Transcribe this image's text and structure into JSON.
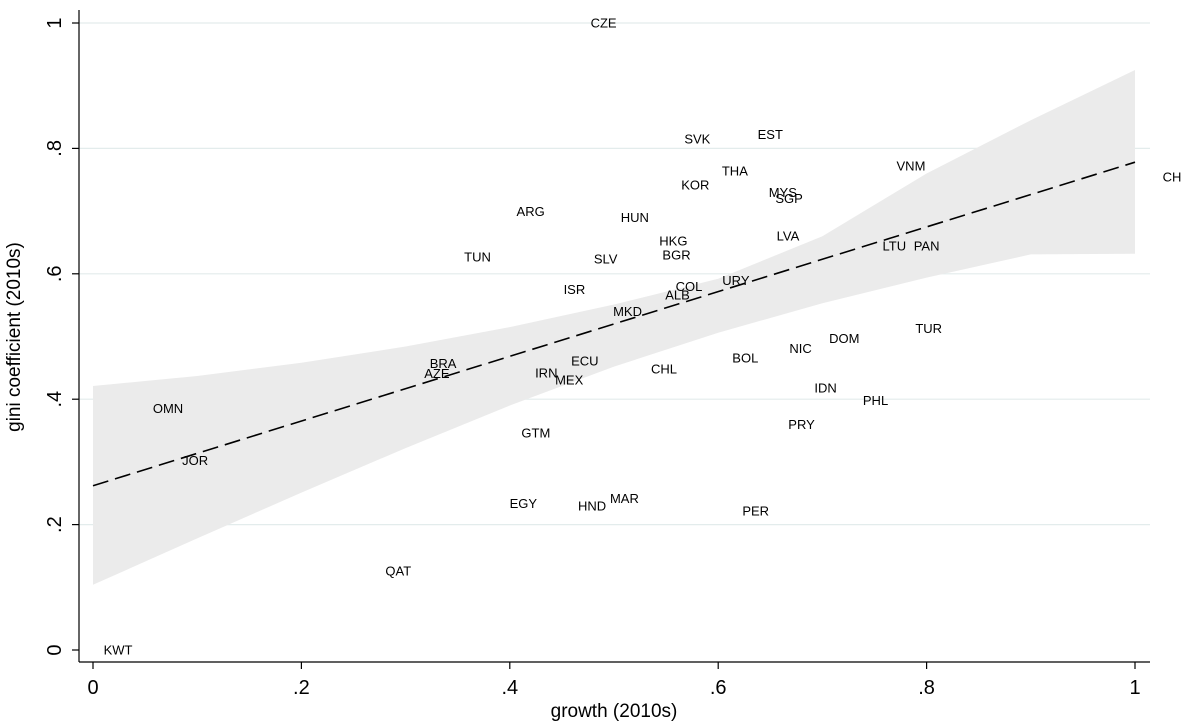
{
  "chart_data": {
    "type": "scatter",
    "xlabel": "growth (2010s)",
    "ylabel": "gini coefficient (2010s)",
    "xlim": [
      0,
      1
    ],
    "ylim": [
      0,
      1
    ],
    "xticks": [
      0,
      0.2,
      0.4,
      0.6,
      0.8,
      1
    ],
    "xtick_labels": [
      "0",
      ".2",
      ".4",
      ".6",
      ".8",
      "1"
    ],
    "yticks": [
      0,
      0.2,
      0.4,
      0.6,
      0.8,
      1
    ],
    "ytick_labels": [
      "0",
      ".2",
      ".4",
      ".6",
      ".8",
      "1"
    ],
    "grid": "horizontal",
    "marker": "country code labels",
    "points": [
      {
        "label": "CZE",
        "x": 0.49,
        "y": 1.0
      },
      {
        "label": "SVK",
        "x": 0.58,
        "y": 0.815
      },
      {
        "label": "EST",
        "x": 0.65,
        "y": 0.822
      },
      {
        "label": "VNM",
        "x": 0.785,
        "y": 0.772
      },
      {
        "label": "CHN",
        "x": 1.04,
        "y": 0.754
      },
      {
        "label": "THA",
        "x": 0.616,
        "y": 0.764
      },
      {
        "label": "KOR",
        "x": 0.578,
        "y": 0.742
      },
      {
        "label": "MYS",
        "x": 0.662,
        "y": 0.73
      },
      {
        "label": "SGP",
        "x": 0.668,
        "y": 0.72
      },
      {
        "label": "ARG",
        "x": 0.42,
        "y": 0.699
      },
      {
        "label": "HUN",
        "x": 0.52,
        "y": 0.69
      },
      {
        "label": "LVA",
        "x": 0.667,
        "y": 0.66
      },
      {
        "label": "HKG",
        "x": 0.557,
        "y": 0.652
      },
      {
        "label": "BGR",
        "x": 0.56,
        "y": 0.63
      },
      {
        "label": "LTU",
        "x": 0.769,
        "y": 0.644
      },
      {
        "label": "PAN",
        "x": 0.8,
        "y": 0.644
      },
      {
        "label": "TUN",
        "x": 0.369,
        "y": 0.627
      },
      {
        "label": "SLV",
        "x": 0.492,
        "y": 0.624
      },
      {
        "label": "URY",
        "x": 0.617,
        "y": 0.589
      },
      {
        "label": "COL",
        "x": 0.572,
        "y": 0.58
      },
      {
        "label": "ISR",
        "x": 0.462,
        "y": 0.575
      },
      {
        "label": "ALB",
        "x": 0.561,
        "y": 0.566
      },
      {
        "label": "MKD",
        "x": 0.513,
        "y": 0.54
      },
      {
        "label": "TUR",
        "x": 0.802,
        "y": 0.513
      },
      {
        "label": "DOM",
        "x": 0.721,
        "y": 0.497
      },
      {
        "label": "NIC",
        "x": 0.679,
        "y": 0.481
      },
      {
        "label": "BOL",
        "x": 0.626,
        "y": 0.466
      },
      {
        "label": "ECU",
        "x": 0.472,
        "y": 0.461
      },
      {
        "label": "BRA",
        "x": 0.336,
        "y": 0.457
      },
      {
        "label": "CHL",
        "x": 0.548,
        "y": 0.448
      },
      {
        "label": "AZE",
        "x": 0.33,
        "y": 0.441
      },
      {
        "label": "IRN",
        "x": 0.435,
        "y": 0.442
      },
      {
        "label": "MEX",
        "x": 0.457,
        "y": 0.431
      },
      {
        "label": "IDN",
        "x": 0.703,
        "y": 0.418
      },
      {
        "label": "PHL",
        "x": 0.751,
        "y": 0.398
      },
      {
        "label": "OMN",
        "x": 0.072,
        "y": 0.385
      },
      {
        "label": "PRY",
        "x": 0.68,
        "y": 0.36
      },
      {
        "label": "GTM",
        "x": 0.425,
        "y": 0.346
      },
      {
        "label": "JOR",
        "x": 0.098,
        "y": 0.302
      },
      {
        "label": "MAR",
        "x": 0.51,
        "y": 0.242
      },
      {
        "label": "EGY",
        "x": 0.413,
        "y": 0.234
      },
      {
        "label": "HND",
        "x": 0.479,
        "y": 0.23
      },
      {
        "label": "PER",
        "x": 0.636,
        "y": 0.222
      },
      {
        "label": "QAT",
        "x": 0.293,
        "y": 0.126
      },
      {
        "label": "KWT",
        "x": 0.024,
        "y": 0.0
      }
    ],
    "fit_line": {
      "x": [
        0,
        1
      ],
      "y": [
        0.262,
        0.778
      ],
      "style": "dashed"
    },
    "confidence_band": {
      "x": [
        0,
        0.1,
        0.2,
        0.3,
        0.4,
        0.5,
        0.6,
        0.7,
        0.8,
        0.9,
        1
      ],
      "lower": [
        0.104,
        0.178,
        0.251,
        0.322,
        0.39,
        0.452,
        0.506,
        0.553,
        0.594,
        0.631,
        0.632
      ],
      "upper": [
        0.421,
        0.437,
        0.458,
        0.484,
        0.515,
        0.551,
        0.592,
        0.66,
        0.76,
        0.845,
        0.925
      ]
    },
    "colors": {
      "band": "#ebebeb",
      "grid": "#e3ecec",
      "line": "#000000",
      "axis": "#000000"
    }
  }
}
